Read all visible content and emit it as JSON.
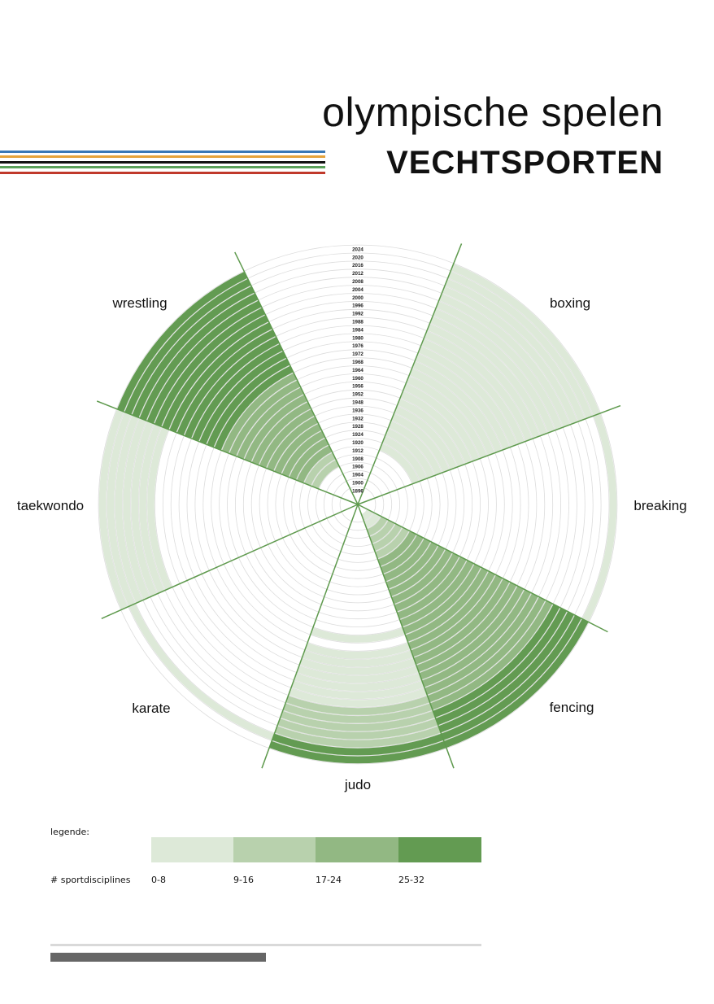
{
  "header": {
    "title": "olympische spelen",
    "subtitle": "VECHTSPORTEN"
  },
  "stripe_colors": [
    "#3a78b5",
    "#e6a33a",
    "#111111",
    "#5aa05a",
    "#c0392b"
  ],
  "legend": {
    "title": "legende:",
    "metric_label": "# sportdisciplines",
    "items": [
      {
        "range": "0-8",
        "color": "#dde9d8"
      },
      {
        "range": "9-16",
        "color": "#b8d1ad"
      },
      {
        "range": "17-24",
        "color": "#92b883"
      },
      {
        "range": "25-32",
        "color": "#639b52"
      }
    ]
  },
  "progress": {
    "fraction": 0.5
  },
  "chart_data": {
    "type": "radial",
    "years": [
      "1896",
      "1900",
      "1904",
      "1906",
      "1908",
      "1912",
      "1920",
      "1924",
      "1928",
      "1932",
      "1936",
      "1948",
      "1952",
      "1956",
      "1960",
      "1964",
      "1968",
      "1972",
      "1976",
      "1980",
      "1984",
      "1988",
      "1992",
      "1996",
      "2000",
      "2004",
      "2008",
      "2012",
      "2016",
      "2020",
      "2024"
    ],
    "categories": [
      "wrestling",
      "boxing",
      "breaking",
      "fencing",
      "judo",
      "karate",
      "taekwondo"
    ],
    "values": {
      "wrestling": [
        0,
        0,
        0,
        0,
        2,
        2,
        3,
        3,
        3,
        3,
        3,
        3,
        3,
        3,
        3,
        3,
        3,
        4,
        4,
        4,
        4,
        4,
        4,
        4,
        4,
        4,
        4,
        4,
        4,
        4,
        4
      ],
      "boxing": [
        0,
        0,
        0,
        0,
        0,
        0,
        1,
        1,
        1,
        1,
        1,
        1,
        1,
        1,
        1,
        1,
        1,
        1,
        1,
        1,
        1,
        1,
        1,
        1,
        1,
        1,
        1,
        1,
        1,
        1,
        1
      ],
      "breaking": [
        0,
        0,
        0,
        0,
        0,
        0,
        0,
        0,
        0,
        0,
        0,
        0,
        0,
        0,
        0,
        0,
        0,
        0,
        0,
        0,
        0,
        0,
        0,
        0,
        0,
        0,
        0,
        0,
        0,
        0,
        1
      ],
      "fencing": [
        1,
        1,
        2,
        2,
        2,
        2,
        3,
        3,
        3,
        3,
        3,
        3,
        3,
        3,
        3,
        3,
        3,
        3,
        3,
        3,
        3,
        3,
        3,
        3,
        3,
        3,
        4,
        4,
        4,
        4,
        4
      ],
      "judo": [
        0,
        0,
        0,
        0,
        0,
        0,
        0,
        0,
        0,
        0,
        0,
        0,
        0,
        0,
        0,
        1,
        0,
        1,
        1,
        1,
        1,
        1,
        1,
        1,
        2,
        2,
        2,
        2,
        2,
        4,
        4
      ],
      "karate": [
        0,
        0,
        0,
        0,
        0,
        0,
        0,
        0,
        0,
        0,
        0,
        0,
        0,
        0,
        0,
        0,
        0,
        0,
        0,
        0,
        0,
        0,
        0,
        0,
        0,
        0,
        0,
        0,
        0,
        1,
        0
      ],
      "taekwondo": [
        0,
        0,
        0,
        0,
        0,
        0,
        0,
        0,
        0,
        0,
        0,
        0,
        0,
        0,
        0,
        0,
        0,
        0,
        0,
        0,
        0,
        0,
        0,
        0,
        1,
        1,
        1,
        1,
        1,
        1,
        1
      ]
    }
  }
}
